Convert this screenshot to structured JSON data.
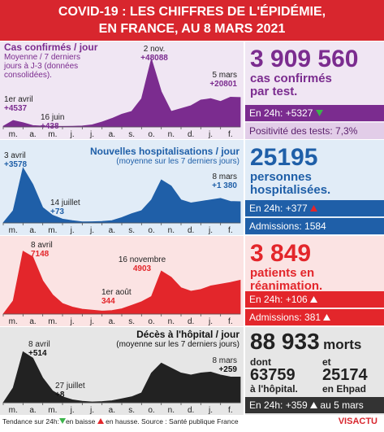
{
  "header": {
    "title_line1": "COVID-19 : LES CHIFFRES DE L'ÉPIDÉMIE,",
    "title_line2": "EN FRANCE, AU 8 MARS 2021"
  },
  "chart_data": [
    {
      "type": "area",
      "title": "Cas confirmés / jour",
      "subtitle": "Moyenne / 7 derniers jours à J-3 (données consolidées).",
      "categories": [
        "m.",
        null,
        "a.",
        null,
        "m.",
        null,
        "j.",
        null,
        "j.",
        null,
        "a.",
        null,
        "s.",
        null,
        "o.",
        null,
        "n.",
        null,
        "d.",
        null,
        "j.",
        null,
        "f.",
        null,
        null
      ],
      "values": [
        500,
        4537,
        3000,
        1000,
        600,
        400,
        438,
        500,
        700,
        1500,
        3500,
        6000,
        9000,
        11000,
        20000,
        48088,
        25000,
        11000,
        13000,
        15000,
        19000,
        20000,
        18000,
        21000,
        20801
      ],
      "color": "#7b2c8f",
      "ylim": [
        0,
        50000
      ],
      "annotations": [
        {
          "date": "1er avril",
          "text": "+4537"
        },
        {
          "date": "16 juin",
          "text": "+438"
        },
        {
          "date": "2 nov.",
          "text": "+48088"
        },
        {
          "date": "5 mars",
          "text": "+20801"
        }
      ]
    },
    {
      "type": "area",
      "title": "Nouvelles hospitalisations / jour",
      "subtitle": "(moyenne sur les 7 derniers jours)",
      "categories": [
        "m.",
        null,
        "a.",
        null,
        "m.",
        null,
        "j.",
        null,
        "j.",
        null,
        "a.",
        null,
        "s.",
        null,
        "o.",
        null,
        "n.",
        null,
        "d.",
        null,
        "j.",
        null,
        "f.",
        null,
        null
      ],
      "values": [
        10,
        800,
        3578,
        2500,
        1000,
        500,
        250,
        150,
        73,
        80,
        100,
        150,
        350,
        600,
        800,
        1500,
        2800,
        2400,
        1500,
        1300,
        1400,
        1500,
        1600,
        1400,
        1380
      ],
      "color": "#1f5fa8",
      "ylim": [
        0,
        3700
      ],
      "annotations": [
        {
          "date": "3 avril",
          "text": "+3578"
        },
        {
          "date": "14 juillet",
          "text": "+73"
        },
        {
          "date": "8 mars",
          "text": "+1 380"
        }
      ]
    },
    {
      "type": "area",
      "categories": [
        "m.",
        null,
        "a.",
        null,
        "m.",
        null,
        "j.",
        null,
        "j.",
        null,
        "a.",
        null,
        "s.",
        null,
        "o.",
        null,
        "n.",
        null,
        "d.",
        null,
        "j.",
        null,
        "f.",
        null,
        null
      ],
      "values": [
        0,
        1500,
        7148,
        6500,
        3800,
        2200,
        1200,
        800,
        550,
        450,
        344,
        400,
        600,
        1000,
        1400,
        2000,
        4903,
        4200,
        3000,
        2600,
        2800,
        3200,
        3400,
        3600,
        3849
      ],
      "color": "#e3262b",
      "ylim": [
        0,
        7500
      ],
      "annotations": [
        {
          "date": "8 avril",
          "text": "7148"
        },
        {
          "date": "16 novembre",
          "text": "4903"
        },
        {
          "date": "1er août",
          "text": "344"
        }
      ]
    },
    {
      "type": "area",
      "title": "Décès à l'hôpital / jour",
      "subtitle": "(moyenne sur les 7 derniers jours)",
      "categories": [
        "m.",
        null,
        "a.",
        null,
        "m.",
        null,
        "j.",
        null,
        "j.",
        null,
        "a.",
        null,
        "s.",
        null,
        "o.",
        null,
        "n.",
        null,
        "d.",
        null,
        "j.",
        null,
        "f.",
        null,
        null
      ],
      "values": [
        0,
        150,
        514,
        450,
        250,
        120,
        60,
        30,
        15,
        8,
        12,
        20,
        40,
        60,
        100,
        300,
        400,
        350,
        300,
        280,
        300,
        310,
        280,
        260,
        259
      ],
      "color": "#222222",
      "ylim": [
        0,
        550
      ],
      "annotations": [
        {
          "date": "8 avril",
          "text": "+514"
        },
        {
          "date": "27 juillet",
          "text": "+8"
        },
        {
          "date": "8 mars",
          "text": "+259"
        }
      ]
    }
  ],
  "stats": [
    {
      "number": "3 909 560",
      "caption": "cas confirmés par test.",
      "change": "En 24h: +5327",
      "extra": "Positivité des tests: 7,3%"
    },
    {
      "number": "25195",
      "caption": "personnes hospitalisées.",
      "change": "En 24h: +377",
      "extra": "Admissions: 1584"
    },
    {
      "number": "3 849",
      "caption": "patients en réanimation.",
      "change": "En 24h: +106",
      "extra": "Admissions: 381"
    },
    {
      "number": "88 933",
      "unit": "morts",
      "left_label": "dont",
      "left_number": "63759",
      "left_caption": "à l'hôpital.",
      "right_label": "et",
      "right_number": "25174",
      "right_caption": "en Ehpad",
      "change": "En 24h: +359",
      "note": "au 5 mars"
    }
  ],
  "footer": {
    "trend": "Tendance sur 24h:",
    "down": "en baisse",
    "up": "en hausse. Source : Santé publique France",
    "brand": "VISACTU"
  }
}
